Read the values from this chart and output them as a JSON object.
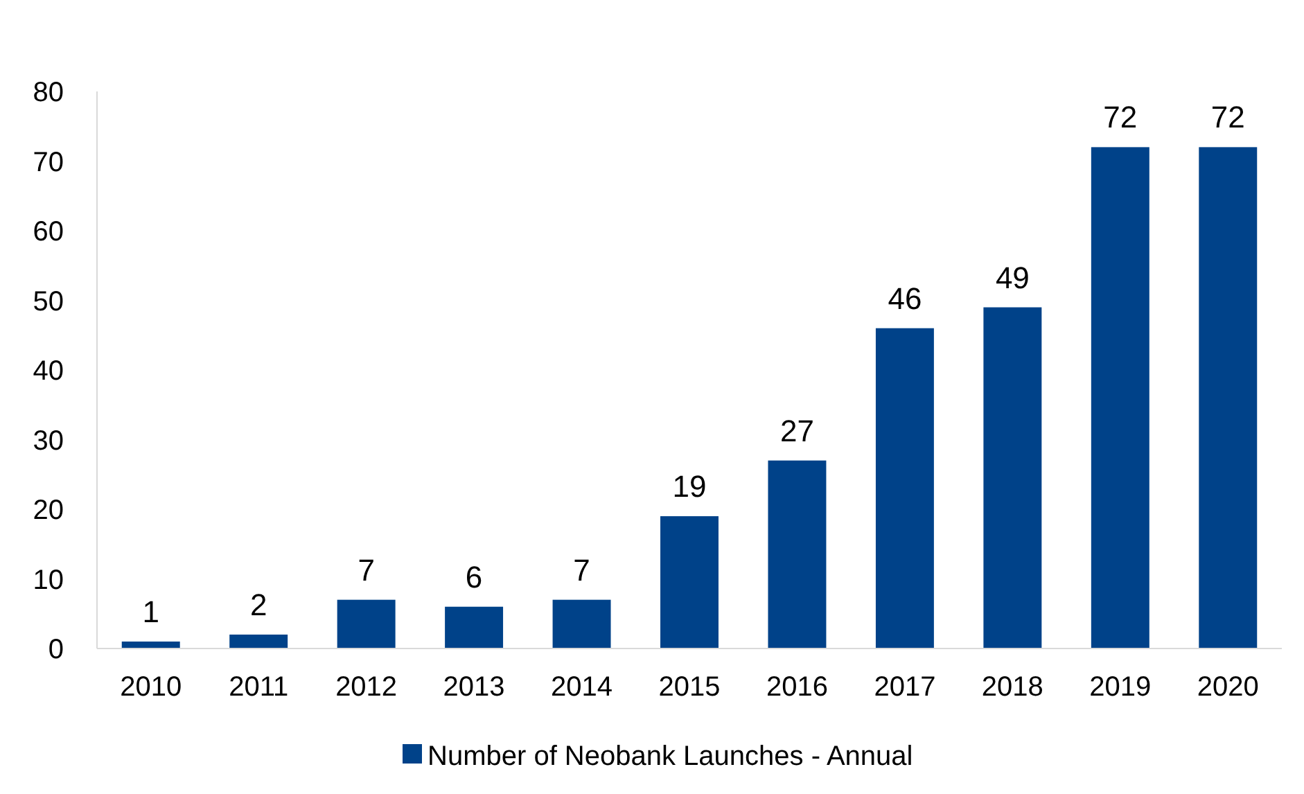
{
  "chart_data": {
    "type": "bar",
    "categories": [
      "2010",
      "2011",
      "2012",
      "2013",
      "2014",
      "2015",
      "2016",
      "2017",
      "2018",
      "2019",
      "2020"
    ],
    "series": [
      {
        "name": "Number of Neobank Launches - Annual",
        "color": "#004289",
        "values": [
          1,
          2,
          7,
          6,
          7,
          19,
          27,
          46,
          49,
          72,
          72
        ]
      }
    ],
    "ylim": [
      0,
      80
    ],
    "yticks": [
      0,
      10,
      20,
      30,
      40,
      50,
      60,
      70,
      80
    ],
    "data_labels": true,
    "grid": false,
    "legend": "bottom"
  }
}
